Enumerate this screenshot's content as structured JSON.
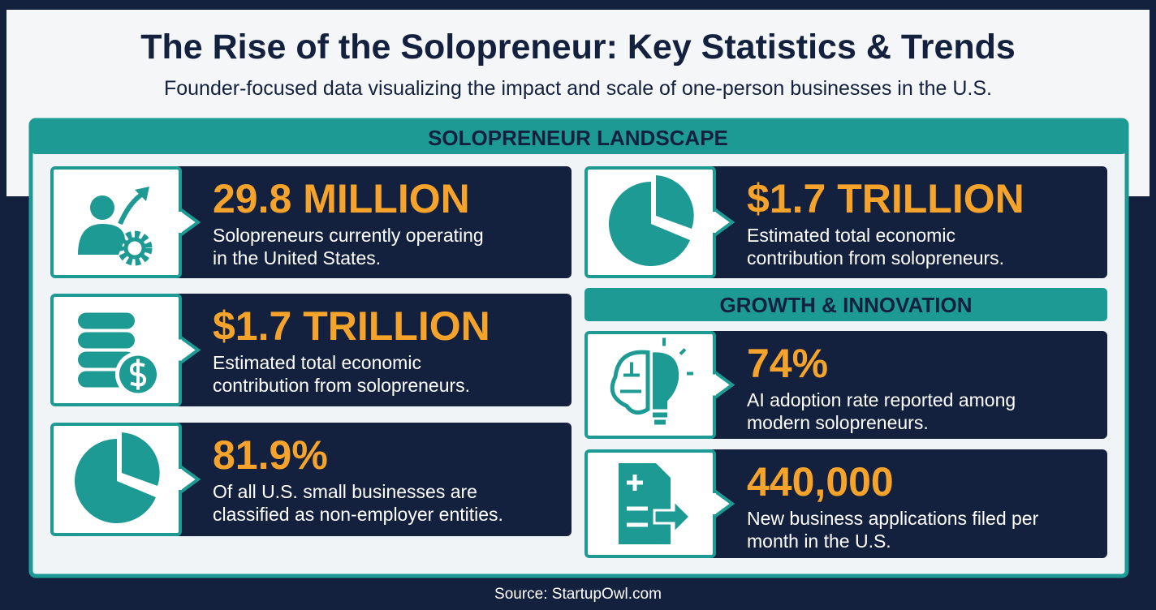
{
  "header": {
    "title": "The Rise of the Solopreneur: Key Statistics & Trends",
    "subtitle": "Founder-focused data visualizing the impact and scale of one-person businesses in the U.S."
  },
  "landscape": {
    "heading": "SOLOPRENEUR LANDSCAPE",
    "cards": [
      {
        "value": "29.8 MILLION",
        "lines": [
          "Solopreneurs currently operating",
          "in the United States."
        ]
      },
      {
        "value": "$1.7 TRILLION",
        "lines": [
          "Estimated total economic",
          "contribution from solopreneurs."
        ]
      },
      {
        "value": "$1.7 TRILLION",
        "lines": [
          "Estimated total economic",
          "contribution from solopreneurs."
        ]
      },
      {
        "value": "81.9%",
        "lines": [
          "Of all U.S. small businesses are",
          "classified as non-employer entities."
        ]
      }
    ]
  },
  "growth": {
    "heading": "GROWTH & INNOVATION",
    "cards": [
      {
        "value": "74%",
        "lines": [
          "AI adoption rate reported among",
          "modern solopreneurs."
        ]
      },
      {
        "value": "440,000",
        "lines": [
          "New business applications filed per",
          "month in the U.S."
        ]
      }
    ]
  },
  "footer": {
    "source": "Source: StartupOwl.com"
  }
}
